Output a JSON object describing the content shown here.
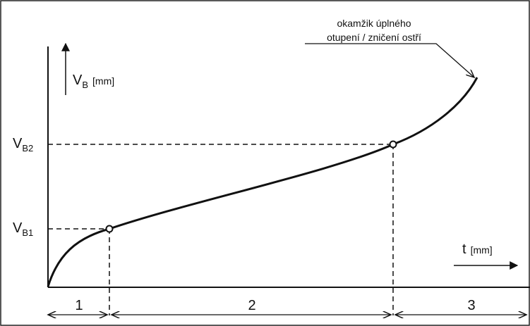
{
  "diagram": {
    "y_axis": {
      "symbol": "V",
      "subscript": "B",
      "unit": "[mm]"
    },
    "x_axis": {
      "symbol": "t",
      "unit": "[mm]"
    },
    "levels": [
      {
        "symbol": "V",
        "subscript": "B1"
      },
      {
        "symbol": "V",
        "subscript": "B2"
      }
    ],
    "annotation": {
      "line1": "okamžik úplného",
      "line2": "otupení / zničení ostří"
    },
    "regions": [
      "1",
      "2",
      "3"
    ]
  }
}
